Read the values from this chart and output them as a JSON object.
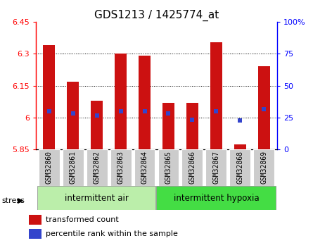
{
  "title": "GDS1213 / 1425774_at",
  "samples": [
    "GSM32860",
    "GSM32861",
    "GSM32862",
    "GSM32863",
    "GSM32864",
    "GSM32865",
    "GSM32866",
    "GSM32867",
    "GSM32868",
    "GSM32869"
  ],
  "bar_tops": [
    6.34,
    6.17,
    6.08,
    6.3,
    6.29,
    6.07,
    6.07,
    6.355,
    5.875,
    6.24
  ],
  "bar_bottom": 5.85,
  "blue_y": [
    6.03,
    6.02,
    6.01,
    6.03,
    6.03,
    6.02,
    5.99,
    6.03,
    5.985,
    6.04
  ],
  "ylim": [
    5.85,
    6.45
  ],
  "yticks": [
    5.85,
    6.0,
    6.15,
    6.3,
    6.45
  ],
  "ytick_labels": [
    "5.85",
    "6",
    "6.15",
    "6.3",
    "6.45"
  ],
  "right_yticks_pct": [
    0,
    25,
    50,
    75,
    100
  ],
  "right_ytick_labels": [
    "0",
    "25",
    "50",
    "75",
    "100%"
  ],
  "bar_color": "#cc1111",
  "blue_color": "#3344cc",
  "group1_label": "intermittent air",
  "group2_label": "intermittent hypoxia",
  "group1_color": "#bbeeaa",
  "group2_color": "#44dd44",
  "stress_label": "stress",
  "legend_bar_label": "transformed count",
  "legend_blue_label": "percentile rank within the sample",
  "title_fontsize": 11,
  "tick_fontsize": 8,
  "label_fontsize": 7,
  "n_group1": 5,
  "n_group2": 5,
  "bar_width": 0.5,
  "left_spine_color": "#cc0000",
  "right_spine_color": "#0000cc"
}
